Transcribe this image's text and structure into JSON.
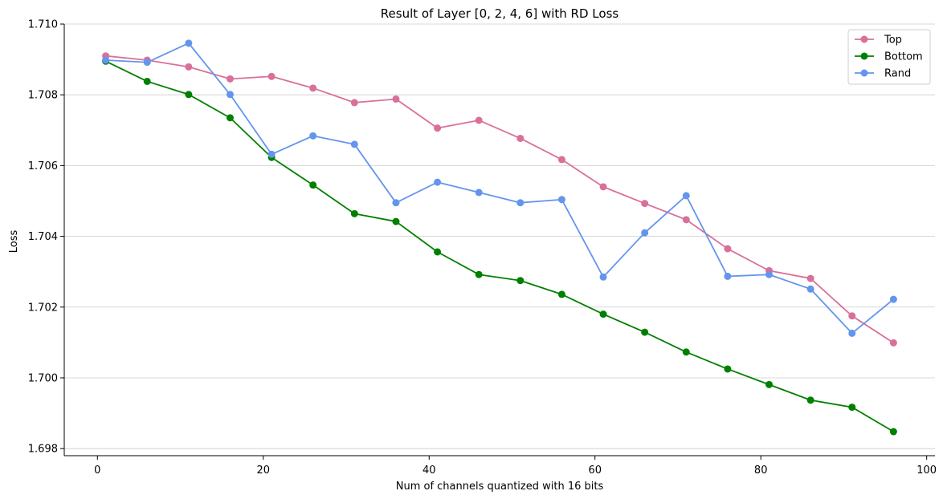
{
  "chart_data": {
    "type": "line",
    "title": "Result of Layer [0, 2, 4, 6] with RD Loss",
    "xlabel": "Num of channels quantized with 16 bits",
    "ylabel": "Loss",
    "xlim": [
      -4,
      101
    ],
    "ylim": [
      1.6978,
      1.71
    ],
    "xticks": [
      0,
      20,
      40,
      60,
      80,
      100
    ],
    "xtick_labels": [
      "0",
      "20",
      "40",
      "60",
      "80",
      "100"
    ],
    "yticks": [
      1.698,
      1.7,
      1.702,
      1.704,
      1.706,
      1.708,
      1.71
    ],
    "ytick_labels": [
      "1.698",
      "1.700",
      "1.702",
      "1.704",
      "1.706",
      "1.708",
      "1.710"
    ],
    "grid": "horizontal",
    "legend": "top-right",
    "x": [
      1,
      6,
      11,
      16,
      21,
      26,
      31,
      36,
      41,
      46,
      51,
      56,
      61,
      66,
      71,
      76,
      81,
      86,
      91,
      96
    ],
    "series": [
      {
        "name": "Top",
        "color": "#d9709a",
        "values": [
          1.7091,
          1.70898,
          1.70879,
          1.70845,
          1.70852,
          1.70819,
          1.70778,
          1.70788,
          1.70706,
          1.70728,
          1.70677,
          1.70617,
          1.7054,
          1.70493,
          1.70447,
          1.70365,
          1.70303,
          1.70281,
          1.70175,
          1.70099
        ]
      },
      {
        "name": "Bottom",
        "color": "#008000",
        "values": [
          1.70895,
          1.70838,
          1.70801,
          1.70735,
          1.70623,
          1.70545,
          1.70464,
          1.70442,
          1.70356,
          1.70292,
          1.70275,
          1.70236,
          1.7018,
          1.70129,
          1.70073,
          1.70025,
          1.69981,
          1.69937,
          1.69917,
          1.69848
        ]
      },
      {
        "name": "Rand",
        "color": "#6495ed",
        "values": [
          1.70898,
          1.70892,
          1.70946,
          1.70801,
          1.70632,
          1.70684,
          1.7066,
          1.70495,
          1.70553,
          1.70524,
          1.70495,
          1.70504,
          1.70285,
          1.7041,
          1.70515,
          1.70287,
          1.70292,
          1.70251,
          1.70126,
          1.70222
        ]
      }
    ]
  }
}
